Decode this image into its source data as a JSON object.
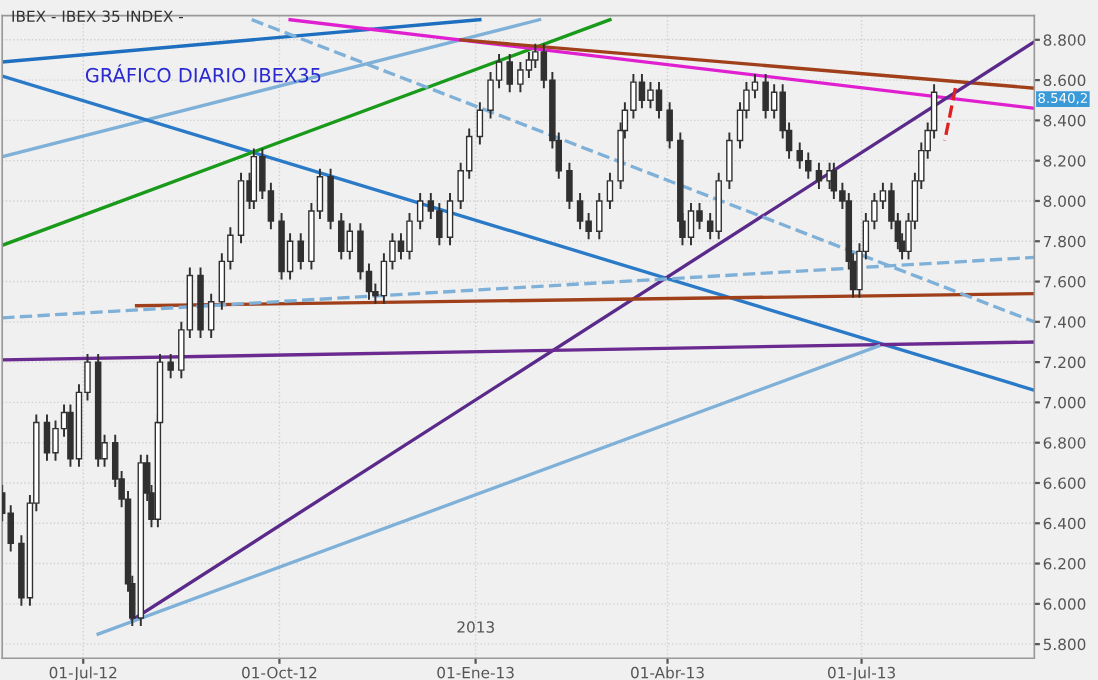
{
  "chart_data": {
    "type": "candlestick",
    "title": "IBEX - IBEX 35 INDEX -",
    "annotations": [
      "GRÁFICO DIARIO IBEX35",
      "2013",
      "8.540,2"
    ],
    "x": [
      "2012-05-24",
      "2012-05-28",
      "2012-06-02",
      "2012-06-06",
      "2012-06-09",
      "2012-06-14",
      "2012-06-18",
      "2012-06-22",
      "2012-06-25",
      "2012-06-29",
      "2012-07-03",
      "2012-07-08",
      "2012-07-11",
      "2012-07-16",
      "2012-07-19",
      "2012-07-22",
      "2012-07-24",
      "2012-07-28",
      "2012-07-31",
      "2012-08-02",
      "2012-08-05",
      "2012-08-06",
      "2012-08-11",
      "2012-08-16",
      "2012-08-20",
      "2012-08-25",
      "2012-08-30",
      "2012-09-04",
      "2012-09-08",
      "2012-09-13",
      "2012-09-17",
      "2012-09-19",
      "2012-09-23",
      "2012-09-27",
      "2012-10-02",
      "2012-10-06",
      "2012-10-11",
      "2012-10-16",
      "2012-10-20",
      "2012-10-25",
      "2012-10-30",
      "2012-11-03",
      "2012-11-08",
      "2012-11-12",
      "2012-11-15",
      "2012-11-19",
      "2012-11-23",
      "2012-11-27",
      "2012-12-01",
      "2012-12-06",
      "2012-12-11",
      "2012-12-15",
      "2012-12-20",
      "2012-12-25",
      "2012-12-29",
      "2013-01-03",
      "2013-01-08",
      "2013-01-12",
      "2013-01-17",
      "2013-01-22",
      "2013-01-26",
      "2013-01-29",
      "2013-02-02",
      "2013-02-06",
      "2013-02-09",
      "2013-02-14",
      "2013-02-19",
      "2013-02-23",
      "2013-02-28",
      "2013-03-05",
      "2013-03-10",
      "2013-03-12",
      "2013-03-16",
      "2013-03-20",
      "2013-03-24",
      "2013-03-28",
      "2013-04-02",
      "2013-04-07",
      "2013-04-08",
      "2013-04-12",
      "2013-04-16",
      "2013-04-21",
      "2013-04-25",
      "2013-04-30",
      "2013-05-05",
      "2013-05-08",
      "2013-05-12",
      "2013-05-17",
      "2013-05-21",
      "2013-05-25",
      "2013-05-28",
      "2013-06-02",
      "2013-06-06",
      "2013-06-11",
      "2013-06-16",
      "2013-06-18",
      "2013-06-22",
      "2013-06-25",
      "2013-06-27",
      "2013-06-30",
      "2013-07-03",
      "2013-07-07",
      "2013-07-11",
      "2013-07-15",
      "2013-07-18",
      "2013-07-20",
      "2013-07-23",
      "2013-07-26",
      "2013-07-29",
      "2013-08-01",
      "2013-08-04"
    ],
    "ohlc": [
      [
        6550,
        6590,
        6410,
        6450
      ],
      [
        6450,
        6490,
        6260,
        6300
      ],
      [
        6300,
        6340,
        5990,
        6030
      ],
      [
        6030,
        6540,
        5990,
        6500
      ],
      [
        6500,
        6940,
        6460,
        6900
      ],
      [
        6900,
        6940,
        6710,
        6750
      ],
      [
        6750,
        6910,
        6710,
        6870
      ],
      [
        6870,
        6990,
        6830,
        6950
      ],
      [
        6950,
        6990,
        6680,
        6720
      ],
      [
        6720,
        7090,
        6680,
        7050
      ],
      [
        7050,
        7240,
        7010,
        7200
      ],
      [
        7200,
        7240,
        6680,
        6720
      ],
      [
        6720,
        6840,
        6680,
        6800
      ],
      [
        6800,
        6840,
        6580,
        6620
      ],
      [
        6620,
        6660,
        6480,
        6520
      ],
      [
        6520,
        6560,
        6060,
        6100
      ],
      [
        6100,
        6140,
        5890,
        5930
      ],
      [
        5930,
        6740,
        5890,
        6700
      ],
      [
        6700,
        6740,
        6510,
        6550
      ],
      [
        6550,
        6590,
        6380,
        6420
      ],
      [
        6420,
        6940,
        6380,
        6900
      ],
      [
        6900,
        7240,
        6860,
        7200
      ],
      [
        7200,
        7240,
        7120,
        7160
      ],
      [
        7160,
        7400,
        7120,
        7360
      ],
      [
        7360,
        7670,
        7320,
        7630
      ],
      [
        7630,
        7670,
        7320,
        7360
      ],
      [
        7360,
        7540,
        7320,
        7500
      ],
      [
        7500,
        7740,
        7460,
        7700
      ],
      [
        7700,
        7870,
        7660,
        7830
      ],
      [
        7830,
        8140,
        7790,
        8100
      ],
      [
        8100,
        8140,
        7960,
        8000
      ],
      [
        8000,
        8260,
        7960,
        8220
      ],
      [
        8220,
        8260,
        8010,
        8050
      ],
      [
        8050,
        8090,
        7860,
        7900
      ],
      [
        7900,
        7940,
        7610,
        7650
      ],
      [
        7650,
        7840,
        7610,
        7800
      ],
      [
        7800,
        7840,
        7660,
        7700
      ],
      [
        7700,
        7990,
        7660,
        7950
      ],
      [
        7950,
        8160,
        7910,
        8120
      ],
      [
        8120,
        8160,
        7860,
        7900
      ],
      [
        7900,
        7940,
        7710,
        7750
      ],
      [
        7750,
        7890,
        7710,
        7850
      ],
      [
        7850,
        7890,
        7610,
        7650
      ],
      [
        7650,
        7690,
        7510,
        7550
      ],
      [
        7550,
        7590,
        7490,
        7530
      ],
      [
        7530,
        7740,
        7490,
        7700
      ],
      [
        7700,
        7840,
        7660,
        7800
      ],
      [
        7800,
        7840,
        7710,
        7750
      ],
      [
        7750,
        7940,
        7710,
        7900
      ],
      [
        7900,
        8040,
        7860,
        8000
      ],
      [
        8000,
        8040,
        7910,
        7950
      ],
      [
        7950,
        7990,
        7780,
        7820
      ],
      [
        7820,
        8040,
        7780,
        8000
      ],
      [
        8000,
        8190,
        7960,
        8150
      ],
      [
        8150,
        8360,
        8110,
        8320
      ],
      [
        8320,
        8490,
        8280,
        8450
      ],
      [
        8450,
        8640,
        8410,
        8600
      ],
      [
        8600,
        8730,
        8560,
        8690
      ],
      [
        8690,
        8730,
        8540,
        8580
      ],
      [
        8580,
        8690,
        8540,
        8650
      ],
      [
        8650,
        8740,
        8610,
        8700
      ],
      [
        8700,
        8780,
        8660,
        8740
      ],
      [
        8740,
        8780,
        8560,
        8600
      ],
      [
        8600,
        8640,
        8260,
        8300
      ],
      [
        8300,
        8340,
        8110,
        8150
      ],
      [
        8150,
        8190,
        7960,
        8000
      ],
      [
        8000,
        8040,
        7860,
        7900
      ],
      [
        7900,
        7940,
        7810,
        7850
      ],
      [
        7850,
        8040,
        7810,
        8000
      ],
      [
        8000,
        8140,
        7960,
        8100
      ],
      [
        8100,
        8390,
        8060,
        8350
      ],
      [
        8350,
        8490,
        8310,
        8450
      ],
      [
        8450,
        8630,
        8410,
        8590
      ],
      [
        8590,
        8630,
        8460,
        8500
      ],
      [
        8500,
        8590,
        8460,
        8550
      ],
      [
        8550,
        8590,
        8410,
        8450
      ],
      [
        8450,
        8490,
        8260,
        8300
      ],
      [
        8300,
        8340,
        7860,
        7900
      ],
      [
        7900,
        7940,
        7780,
        7820
      ],
      [
        7820,
        7990,
        7780,
        7950
      ],
      [
        7950,
        7990,
        7860,
        7900
      ],
      [
        7900,
        7940,
        7810,
        7850
      ],
      [
        7850,
        8140,
        7810,
        8100
      ],
      [
        8100,
        8340,
        8060,
        8300
      ],
      [
        8300,
        8490,
        8260,
        8450
      ],
      [
        8450,
        8590,
        8410,
        8550
      ],
      [
        8550,
        8630,
        8510,
        8590
      ],
      [
        8590,
        8630,
        8410,
        8450
      ],
      [
        8450,
        8580,
        8410,
        8540
      ],
      [
        8540,
        8580,
        8310,
        8350
      ],
      [
        8350,
        8390,
        8210,
        8250
      ],
      [
        8250,
        8290,
        8160,
        8200
      ],
      [
        8200,
        8240,
        8110,
        8150
      ],
      [
        8150,
        8190,
        8060,
        8100
      ],
      [
        8100,
        8190,
        8060,
        8150
      ],
      [
        8150,
        8190,
        8010,
        8050
      ],
      [
        8050,
        8090,
        7960,
        8000
      ],
      [
        8000,
        8040,
        7660,
        7700
      ],
      [
        7700,
        7740,
        7520,
        7560
      ],
      [
        7560,
        7790,
        7520,
        7750
      ],
      [
        7750,
        7940,
        7710,
        7900
      ],
      [
        7900,
        8040,
        7860,
        8000
      ],
      [
        8000,
        8090,
        7960,
        8050
      ],
      [
        8050,
        8090,
        7860,
        7900
      ],
      [
        7900,
        7940,
        7760,
        7800
      ],
      [
        7800,
        7840,
        7710,
        7750
      ],
      [
        7750,
        7940,
        7710,
        7900
      ],
      [
        7900,
        8140,
        7860,
        8100
      ],
      [
        8100,
        8290,
        8060,
        8250
      ],
      [
        8250,
        8390,
        8210,
        8350
      ],
      [
        8350,
        8580,
        8310,
        8540
      ]
    ],
    "color": "#303030",
    "series": [
      {
        "type": "line",
        "color": "#1f6fc0",
        "x": [
          "2012-05-24",
          "2013-01-03"
        ],
        "values": [
          8690,
          8900
        ]
      },
      {
        "type": "line",
        "color": "#7fb0d8",
        "x": [
          "2012-05-24",
          "2013-01-31"
        ],
        "values": [
          8220,
          8900
        ]
      },
      {
        "type": "line",
        "color": "#2a7ac8",
        "x": [
          "2012-05-24",
          "2013-09-20"
        ],
        "values": [
          8620,
          7060
        ]
      },
      {
        "type": "line",
        "color": "#1a9a1a",
        "x": [
          "2012-05-24",
          "2013-03-05"
        ],
        "values": [
          7780,
          8900
        ]
      },
      {
        "type": "line",
        "color": "#e020d0",
        "x": [
          "2012-10-06",
          "2013-09-20"
        ],
        "values": [
          8900,
          8460
        ]
      },
      {
        "type": "line",
        "color": "#a0401a",
        "x": [
          "2012-12-25",
          "2013-09-20"
        ],
        "values": [
          8800,
          8560
        ]
      },
      {
        "type": "line",
        "color": "#5a2a8a",
        "x": [
          "2012-07-24",
          "2013-09-20"
        ],
        "values": [
          5920,
          8790
        ]
      },
      {
        "type": "line",
        "color": "#a0401a",
        "x": [
          "2012-07-26",
          "2013-09-20"
        ],
        "values": [
          7480,
          7540
        ]
      },
      {
        "type": "line",
        "color": "#6a2a90",
        "x": [
          "2012-05-24",
          "2013-09-20"
        ],
        "values": [
          7211,
          7300
        ]
      },
      {
        "type": "line",
        "color": "#7fb0d8",
        "x": [
          "2012-07-08",
          "2013-07-09"
        ],
        "values": [
          5850,
          7280
        ]
      },
      {
        "type": "line",
        "color": "#7fb0d8",
        "line_style": "dashed",
        "x": [
          "2012-05-24",
          "2013-09-20"
        ],
        "values": [
          7420,
          7720
        ]
      },
      {
        "type": "line",
        "color": "#7fb0d8",
        "line_style": "dashed",
        "x": [
          "2012-09-18",
          "2013-09-20"
        ],
        "values": [
          8900,
          7400
        ]
      },
      {
        "type": "line",
        "color": "#e02020",
        "line_style": "dashed",
        "x": [
          "2013-08-14",
          "2013-08-09"
        ],
        "values": [
          8560,
          8300
        ]
      }
    ],
    "xlim": [
      "2012-05-24",
      "2013-09-20"
    ],
    "ylim": [
      5730,
      8920
    ],
    "xticks": [
      {
        "value": "2012-07-01",
        "label": "01-Jul-12"
      },
      {
        "value": "2012-10-01",
        "label": "01-Oct-12"
      },
      {
        "value": "2013-01-01",
        "label": "01-Ene-13"
      },
      {
        "value": "2013-04-01",
        "label": "01-Abr-13"
      },
      {
        "value": "2013-07-01",
        "label": "01-Jul-13"
      }
    ],
    "yticks": [
      {
        "value": 5800,
        "label": "5.800"
      },
      {
        "value": 6000,
        "label": "6.000"
      },
      {
        "value": 6200,
        "label": "6.200"
      },
      {
        "value": 6400,
        "label": "6.400"
      },
      {
        "value": 6600,
        "label": "6.600"
      },
      {
        "value": 6800,
        "label": "6.800"
      },
      {
        "value": 7000,
        "label": "7.000"
      },
      {
        "value": 7200,
        "label": "7.200"
      },
      {
        "value": 7400,
        "label": "7.400"
      },
      {
        "value": 7600,
        "label": "7.600"
      },
      {
        "value": 7800,
        "label": "7.800"
      },
      {
        "value": 8000,
        "label": "8.000"
      },
      {
        "value": 8200,
        "label": "8.200"
      },
      {
        "value": 8400,
        "label": "8.400"
      },
      {
        "value": 8600,
        "label": "8.600"
      },
      {
        "value": 8800,
        "label": "8.800"
      }
    ],
    "grid": true,
    "legend": false
  }
}
